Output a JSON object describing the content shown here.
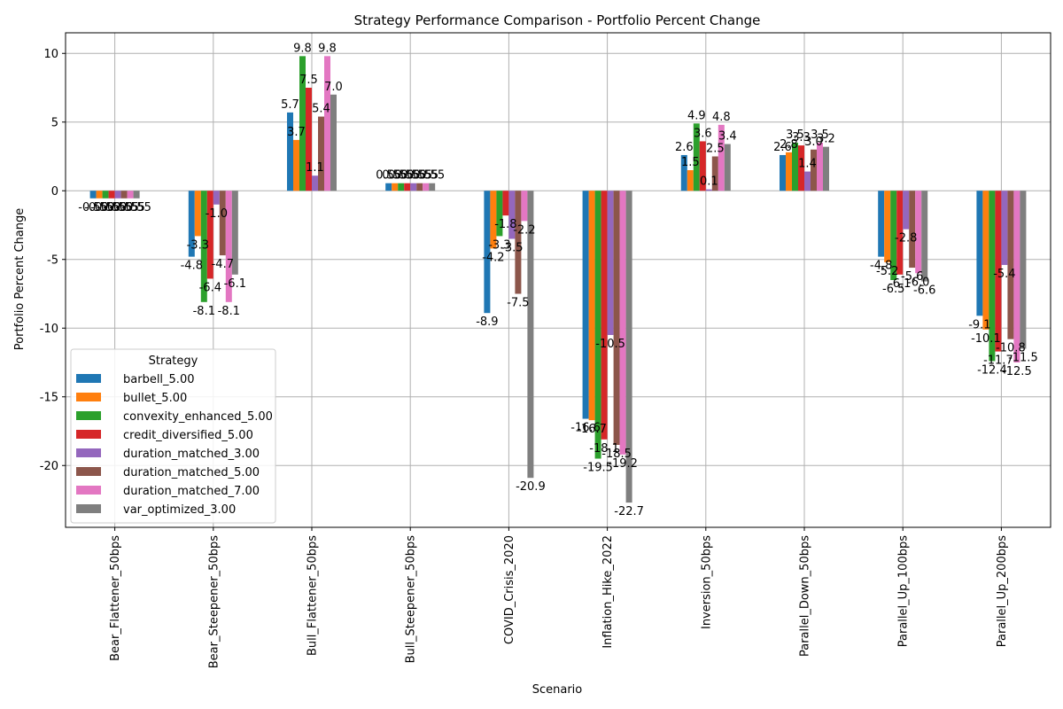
{
  "chart_data": {
    "type": "bar",
    "title": "Strategy Performance Comparison - Portfolio Percent Change",
    "xlabel": "Scenario",
    "ylabel": "Portfolio Percent Change",
    "ylim": [
      -24.5,
      11.5
    ],
    "yticks": [
      10,
      5,
      0,
      -5,
      -10,
      -15,
      -20
    ],
    "grid": true,
    "legend_title": "Strategy",
    "legend_position": "lower-left",
    "categories": [
      "Bear_Flattener_50bps",
      "Bear_Steepener_50bps",
      "Bull_Flattener_50bps",
      "Bull_Steepener_50bps",
      "COVID_Crisis_2020",
      "Inflation_Hike_2022",
      "Inversion_50bps",
      "Parallel_Down_50bps",
      "Parallel_Up_100bps",
      "Parallel_Up_200bps"
    ],
    "series": [
      {
        "name": "barbell_5.00",
        "color": "#1f77b4",
        "values": [
          -0.55,
          -4.8,
          5.7,
          0.55,
          -8.9,
          -16.6,
          2.6,
          2.6,
          -4.8,
          -9.1
        ]
      },
      {
        "name": "bullet_5.00",
        "color": "#ff7f0e",
        "values": [
          -0.55,
          -3.3,
          3.7,
          0.55,
          -4.2,
          -16.7,
          1.5,
          2.8,
          -5.2,
          -10.1
        ]
      },
      {
        "name": "convexity_enhanced_5.00",
        "color": "#2ca02c",
        "values": [
          -0.55,
          -8.1,
          9.8,
          0.55,
          -3.3,
          -19.5,
          4.9,
          3.5,
          -6.5,
          -12.4
        ]
      },
      {
        "name": "credit_diversified_5.00",
        "color": "#d62728",
        "values": [
          -0.55,
          -6.4,
          7.5,
          0.55,
          -1.8,
          -18.1,
          3.6,
          3.3,
          -6.1,
          -11.7
        ]
      },
      {
        "name": "duration_matched_3.00",
        "color": "#9467bd",
        "values": [
          -0.55,
          -1.0,
          1.1,
          0.55,
          -3.5,
          -10.5,
          0.1,
          1.4,
          -2.8,
          -5.4
        ]
      },
      {
        "name": "duration_matched_5.00",
        "color": "#8c564b",
        "values": [
          -0.55,
          -4.7,
          5.4,
          0.55,
          -7.5,
          -18.5,
          2.5,
          3.0,
          -5.6,
          -10.8
        ]
      },
      {
        "name": "duration_matched_7.00",
        "color": "#e377c2",
        "values": [
          -0.55,
          -8.1,
          9.8,
          0.55,
          -2.2,
          -19.2,
          4.8,
          3.5,
          -6.0,
          -12.5
        ]
      },
      {
        "name": "var_optimized_3.00",
        "color": "#7f7f7f",
        "values": [
          -0.55,
          -6.1,
          7.0,
          0.55,
          -20.9,
          -22.7,
          3.4,
          3.2,
          -6.6,
          -11.5
        ]
      }
    ],
    "data_labels": [
      [
        "-0.55",
        "-0.55",
        "-0.55",
        "-0.55",
        "-0.55",
        "-0.55",
        "-0.55",
        "-0.55"
      ],
      [
        "-4.8",
        "-3.3",
        "-8.1",
        "-6.4",
        "-1.0",
        "-4.7",
        "-8.1",
        "-6.1"
      ],
      [
        "5.7",
        "3.7",
        "9.8",
        "7.5",
        "1.1",
        "5.4",
        "9.8",
        "7.0"
      ],
      [
        "0.55",
        "0.55",
        "0.55",
        "0.55",
        "0.55",
        "0.55",
        "0.55",
        "0.55"
      ],
      [
        "-8.9",
        "-4.2",
        "-3.3",
        "-1.8",
        "-3.5",
        "-7.5",
        "-2.2",
        "-20.9"
      ],
      [
        "-16.6",
        "-16.7",
        "-19.5",
        "-18.1",
        "-10.5",
        "-18.5",
        "-19.2",
        "-22.7"
      ],
      [
        "2.6",
        "1.5",
        "4.9",
        "3.6",
        "0.1",
        "2.5",
        "4.8",
        "3.4"
      ],
      [
        "2.6",
        "2.8",
        "3.5",
        "3.3",
        "1.4",
        "3.0",
        "3.5",
        "3.2"
      ],
      [
        "-4.8",
        "-5.2",
        "-6.5",
        "-6.1",
        "-2.8",
        "-5.6",
        "-6.0",
        "-6.6"
      ],
      [
        "-9.1",
        "-10.1",
        "-12.4",
        "-11.7",
        "-5.4",
        "-10.8",
        "-12.5",
        "-11.5"
      ]
    ]
  }
}
